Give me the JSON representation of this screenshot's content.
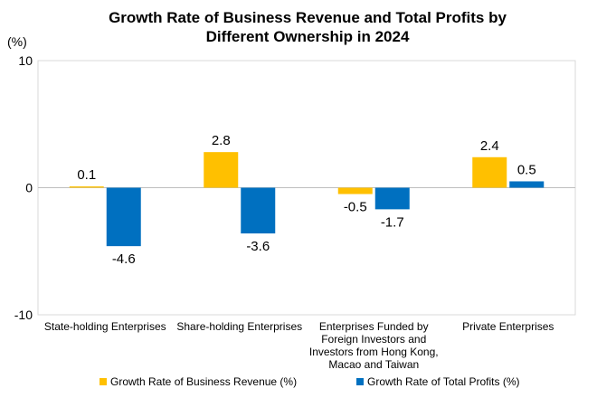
{
  "chart_data": {
    "type": "bar",
    "title_lines": [
      "Growth Rate of Business Revenue and Total Profits by",
      "Different Ownership in 2024"
    ],
    "y_unit_label": "(%)",
    "ylim": [
      -10,
      10
    ],
    "y_ticks": [
      10,
      0,
      -10
    ],
    "categories": [
      [
        "State-holding Enterprises"
      ],
      [
        "Share-holding Enterprises"
      ],
      [
        "Enterprises Funded by",
        "Foreign Investors and",
        "Investors from Hong Kong,",
        "Macao and Taiwan"
      ],
      [
        "Private Enterprises"
      ]
    ],
    "series": [
      {
        "name": "Growth Rate of Business Revenue (%)",
        "color": "#FFC000",
        "values": [
          0.1,
          2.8,
          -0.5,
          2.4
        ],
        "labels": [
          "0.1",
          "2.8",
          "-0.5",
          "2.4"
        ]
      },
      {
        "name": "Growth Rate of Total Profits (%)",
        "color": "#0070C0",
        "values": [
          -4.6,
          -3.6,
          -1.7,
          0.5
        ],
        "labels": [
          "-4.6",
          "-3.6",
          "-1.7",
          "0.5"
        ]
      }
    ],
    "legend_position": "bottom",
    "grid": false
  }
}
